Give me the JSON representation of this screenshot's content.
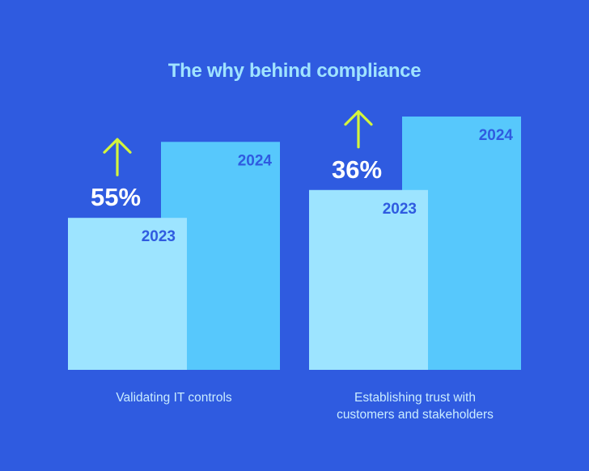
{
  "chart_data": {
    "type": "bar",
    "title": "The why behind compliance",
    "categories": [
      "Validating IT controls",
      "Establishing trust with customers and stakeholders"
    ],
    "series": [
      {
        "name": "2023",
        "values": [
          null,
          null
        ],
        "color": "#9de4ff"
      },
      {
        "name": "2024",
        "values": [
          null,
          null
        ],
        "color": "#57c8fc"
      }
    ],
    "changes": [
      "55%",
      "36%"
    ],
    "change_direction": "up",
    "change_color": "#d4f53c",
    "relative_heights": {
      "2023": [
        0.6,
        0.71
      ],
      "2024": [
        0.9,
        1.0
      ]
    },
    "grid": false,
    "axes_shown": false
  },
  "labels": {
    "group1_line1": "Validating IT controls",
    "group2_line1": "Establishing trust with",
    "group2_line2": "customers and stakeholders"
  }
}
